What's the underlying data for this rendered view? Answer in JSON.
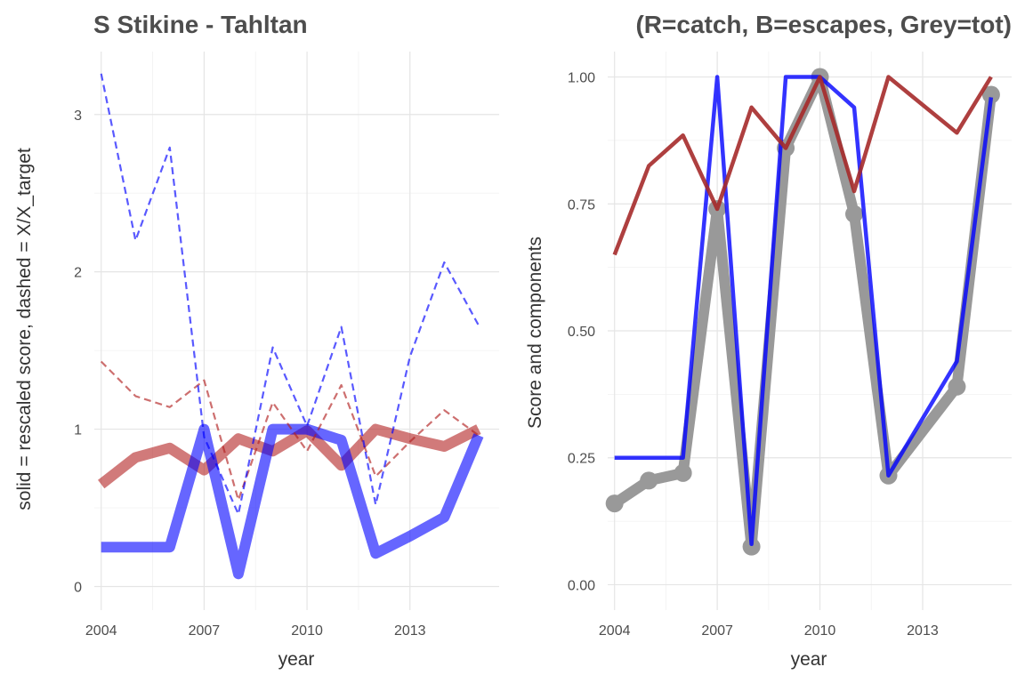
{
  "chart_data": [
    {
      "type": "line",
      "title": "S Stikine - Tahltan",
      "xlabel": "year",
      "ylabel": "solid = rescaled score, dashed = X/X_target",
      "xlim": [
        2003.8,
        2015.6
      ],
      "ylim": [
        -0.15,
        3.4
      ],
      "x_ticks": [
        2004,
        2007,
        2010,
        2013
      ],
      "y_ticks": [
        0,
        1,
        2,
        3
      ],
      "x_tick_labels": [
        "2004",
        "2007",
        "2010",
        "2013"
      ],
      "y_tick_labels": [
        "0",
        "1",
        "2",
        "3"
      ],
      "grid": true,
      "series": [
        {
          "style": "solid",
          "color": "#b22222",
          "x": [
            2004,
            2005,
            2006,
            2007,
            2008,
            2009,
            2010,
            2011,
            2012,
            2013,
            2014,
            2015
          ],
          "y": [
            0.65,
            0.82,
            0.88,
            0.74,
            0.94,
            0.86,
            0.99,
            0.77,
            1.0,
            0.94,
            0.89,
            1.0
          ]
        },
        {
          "style": "solid",
          "color": "#0000ff",
          "x": [
            2004,
            2005,
            2006,
            2007,
            2008,
            2009,
            2010,
            2011,
            2012,
            2013,
            2014,
            2015
          ],
          "y": [
            0.25,
            0.25,
            0.25,
            1.0,
            0.08,
            1.0,
            1.0,
            0.93,
            0.21,
            0.32,
            0.44,
            0.96
          ]
        },
        {
          "style": "dashed",
          "color": "#b22222",
          "x": [
            2004,
            2005,
            2006,
            2007,
            2008,
            2009,
            2010,
            2011,
            2012,
            2013,
            2014,
            2015
          ],
          "y": [
            1.43,
            1.21,
            1.14,
            1.31,
            0.55,
            1.17,
            0.86,
            1.28,
            0.7,
            0.92,
            1.12,
            0.96
          ]
        },
        {
          "style": "dashed",
          "color": "#0000ff",
          "x": [
            2004,
            2005,
            2006,
            2007,
            2008,
            2009,
            2010,
            2011,
            2012,
            2013,
            2014,
            2015
          ],
          "y": [
            3.26,
            2.2,
            2.79,
            0.95,
            0.46,
            1.52,
            1.02,
            1.65,
            0.52,
            1.46,
            2.06,
            1.66
          ]
        }
      ]
    },
    {
      "type": "line",
      "title": "(R=catch, B=escapes, Grey=tot)",
      "xlabel": "year",
      "ylabel": "Score and components",
      "xlim": [
        2003.8,
        2015.6
      ],
      "ylim": [
        -0.05,
        1.05
      ],
      "x_ticks": [
        2004,
        2007,
        2010,
        2013
      ],
      "y_ticks": [
        0,
        0.25,
        0.5,
        0.75,
        1.0
      ],
      "x_tick_labels": [
        "2004",
        "2007",
        "2010",
        "2013"
      ],
      "y_tick_labels": [
        "0.00",
        "0.25",
        "0.50",
        "0.75",
        "1.00"
      ],
      "grid": true,
      "series": [
        {
          "style": "solid-points",
          "color": "#999999",
          "x": [
            2004,
            2005,
            2006,
            2007,
            2008,
            2009,
            2010,
            2011,
            2012,
            2014,
            2015
          ],
          "y": [
            0.16,
            0.205,
            0.22,
            0.74,
            0.075,
            0.86,
            1.0,
            0.73,
            0.215,
            0.39,
            0.965
          ]
        },
        {
          "style": "solid",
          "color": "#0000ff",
          "x": [
            2004,
            2005,
            2006,
            2007,
            2008,
            2009,
            2010,
            2011,
            2012,
            2014,
            2015
          ],
          "y": [
            0.25,
            0.25,
            0.25,
            1.0,
            0.08,
            1.0,
            1.0,
            0.94,
            0.215,
            0.44,
            0.96
          ]
        },
        {
          "style": "solid",
          "color": "#a52a2a",
          "x": [
            2004,
            2005,
            2006,
            2007,
            2008,
            2009,
            2010,
            2011,
            2012,
            2014,
            2015
          ],
          "y": [
            0.65,
            0.825,
            0.885,
            0.74,
            0.94,
            0.86,
            1.0,
            0.775,
            1.0,
            0.89,
            1.0
          ]
        }
      ]
    }
  ]
}
